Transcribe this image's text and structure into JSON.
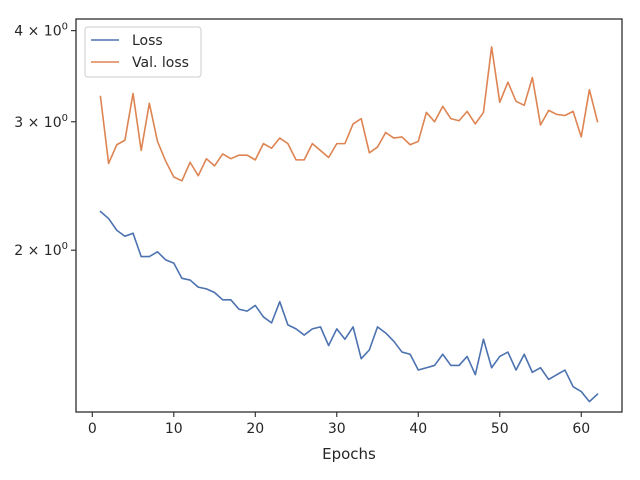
{
  "chart_data": {
    "type": "line",
    "title": "",
    "xlabel": "Epochs",
    "ylabel": "",
    "yscale": "log",
    "xlim": [
      -2,
      65
    ],
    "ylim": [
      1.2,
      4.15
    ],
    "x_ticks": [
      0,
      10,
      20,
      30,
      40,
      50,
      60
    ],
    "y_ticks": [
      {
        "value": 2,
        "base": "2",
        "exp": "0"
      },
      {
        "value": 3,
        "base": "3",
        "exp": "0"
      },
      {
        "value": 4,
        "base": "4",
        "exp": "0"
      }
    ],
    "grid": false,
    "legend": "top-left",
    "x": [
      1,
      2,
      3,
      4,
      5,
      6,
      7,
      8,
      9,
      10,
      11,
      12,
      13,
      14,
      15,
      16,
      17,
      18,
      19,
      20,
      21,
      22,
      23,
      24,
      25,
      26,
      27,
      28,
      29,
      30,
      31,
      32,
      33,
      34,
      35,
      36,
      37,
      38,
      39,
      40,
      41,
      42,
      43,
      44,
      45,
      46,
      47,
      48,
      49,
      50,
      51,
      52,
      53,
      54,
      55,
      56,
      57,
      58,
      59,
      60,
      61,
      62
    ],
    "series": [
      {
        "name": "Loss",
        "color": "#4c72b0",
        "values": [
          2.26,
          2.21,
          2.13,
          2.09,
          2.11,
          1.96,
          1.96,
          1.99,
          1.94,
          1.92,
          1.83,
          1.82,
          1.78,
          1.77,
          1.75,
          1.71,
          1.71,
          1.66,
          1.65,
          1.68,
          1.62,
          1.59,
          1.7,
          1.58,
          1.56,
          1.53,
          1.56,
          1.57,
          1.48,
          1.56,
          1.51,
          1.57,
          1.42,
          1.46,
          1.57,
          1.54,
          1.5,
          1.45,
          1.44,
          1.37,
          1.38,
          1.39,
          1.44,
          1.39,
          1.39,
          1.43,
          1.35,
          1.51,
          1.38,
          1.43,
          1.45,
          1.37,
          1.44,
          1.36,
          1.38,
          1.33,
          1.35,
          1.37,
          1.3,
          1.28,
          1.24,
          1.27
        ]
      },
      {
        "name": "Val. loss",
        "color": "#dd8452",
        "values": [
          3.25,
          2.63,
          2.79,
          2.83,
          3.28,
          2.74,
          3.18,
          2.82,
          2.65,
          2.52,
          2.49,
          2.64,
          2.53,
          2.67,
          2.61,
          2.71,
          2.67,
          2.7,
          2.7,
          2.66,
          2.8,
          2.76,
          2.85,
          2.8,
          2.66,
          2.66,
          2.8,
          2.74,
          2.68,
          2.8,
          2.8,
          2.98,
          3.03,
          2.72,
          2.77,
          2.9,
          2.85,
          2.86,
          2.79,
          2.82,
          3.09,
          3.0,
          3.15,
          3.03,
          3.01,
          3.1,
          2.98,
          3.09,
          3.8,
          3.19,
          3.4,
          3.2,
          3.16,
          3.45,
          2.97,
          3.11,
          3.07,
          3.06,
          3.1,
          2.86,
          3.32,
          3.0
        ]
      }
    ]
  }
}
